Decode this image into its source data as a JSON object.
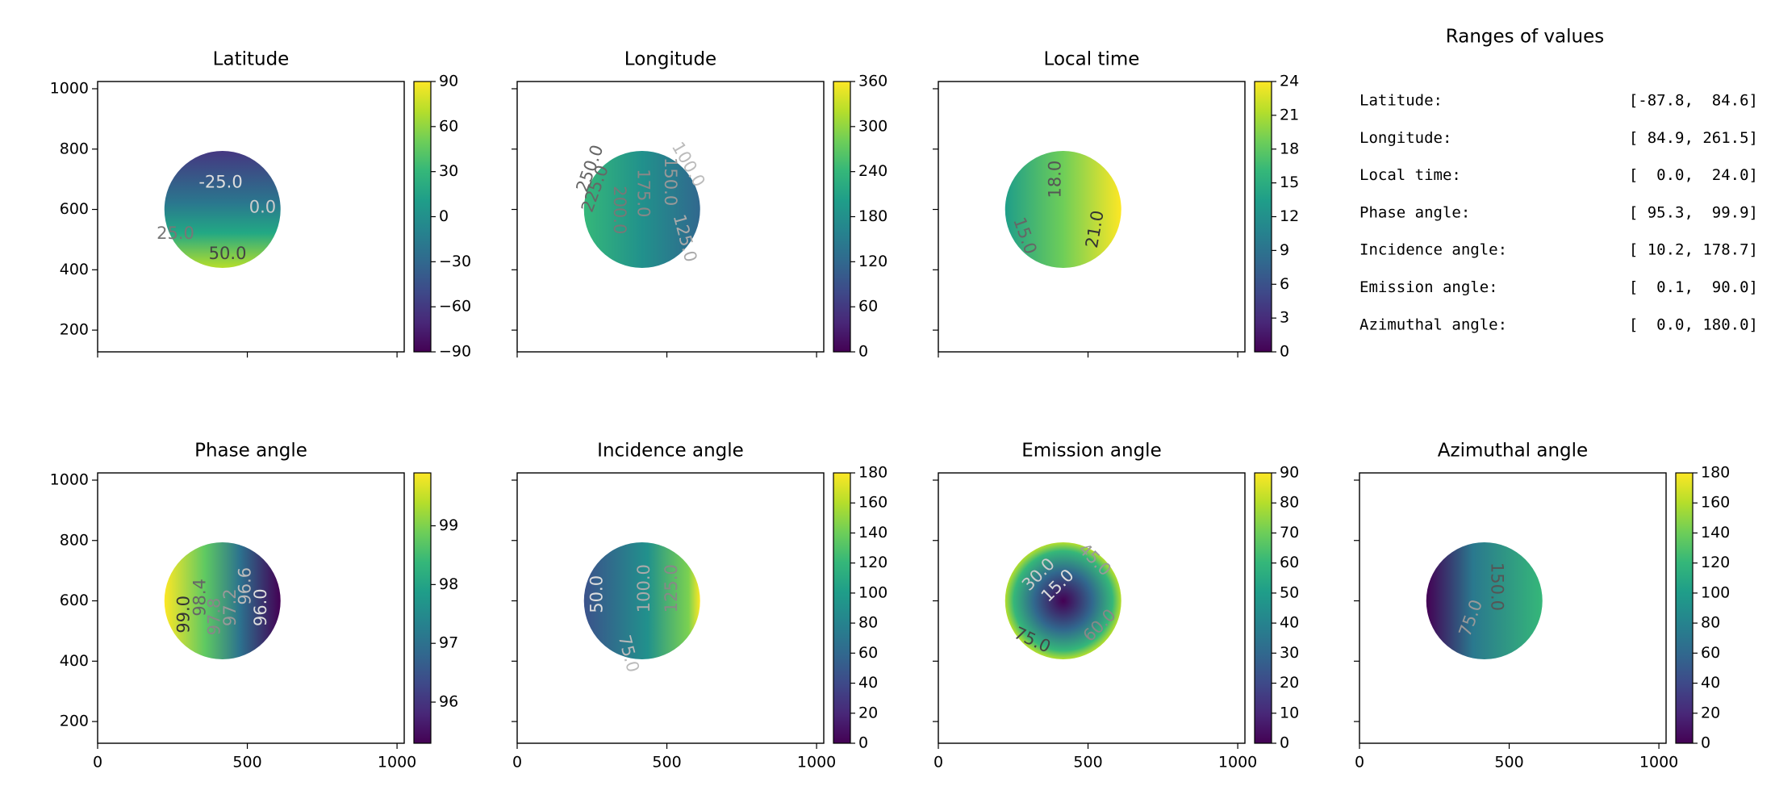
{
  "chart_data": [
    {
      "type": "image",
      "title": "Latitude",
      "xlim": [
        0,
        1024
      ],
      "ylim": [
        128,
        1024
      ],
      "xticks": [
        0,
        500,
        1000
      ],
      "yticks": [
        200,
        400,
        600,
        800,
        1000
      ],
      "show_xticklabels": false,
      "show_yticklabels": true,
      "clim": [
        -90,
        90
      ],
      "cticks": [
        {
          "value": -90,
          "label": "−90"
        },
        {
          "value": -60,
          "label": "−60"
        },
        {
          "value": -30,
          "label": "−30"
        },
        0,
        30,
        60,
        90
      ],
      "annotations": [
        "-25.0",
        "0.0",
        "25.0",
        "50.0"
      ]
    },
    {
      "type": "image",
      "title": "Longitude",
      "xlim": [
        0,
        1024
      ],
      "ylim": [
        128,
        1024
      ],
      "xticks": [
        0,
        500,
        1000
      ],
      "yticks": [
        200,
        400,
        600,
        800,
        1000
      ],
      "show_xticklabels": false,
      "show_yticklabels": false,
      "clim": [
        0,
        360
      ],
      "cticks": [
        0,
        60,
        120,
        180,
        240,
        300,
        360
      ],
      "annotations": [
        "250.0",
        "225.0",
        "200.0",
        "175.0",
        "150.0",
        "100.0",
        "125.0"
      ]
    },
    {
      "type": "image",
      "title": "Local time",
      "xlim": [
        0,
        1024
      ],
      "ylim": [
        128,
        1024
      ],
      "xticks": [
        0,
        500,
        1000
      ],
      "yticks": [
        200,
        400,
        600,
        800,
        1000
      ],
      "show_xticklabels": false,
      "show_yticklabels": false,
      "clim": [
        0,
        24
      ],
      "cticks": [
        0,
        3,
        6,
        9,
        12,
        15,
        18,
        21,
        24
      ],
      "annotations": [
        "18.0",
        "15.0",
        "21.0"
      ]
    },
    {
      "type": "image",
      "title": "Phase angle",
      "xlim": [
        0,
        1024
      ],
      "ylim": [
        128,
        1024
      ],
      "xticks": [
        0,
        500,
        1000
      ],
      "yticks": [
        200,
        400,
        600,
        800,
        1000
      ],
      "show_xticklabels": true,
      "show_yticklabels": true,
      "clim": [
        95.3,
        99.9
      ],
      "cticks": [
        96,
        97,
        98,
        99
      ],
      "annotations": [
        "99.0",
        "98.4",
        "97.8",
        "97.2",
        "96.6",
        "96.0"
      ]
    },
    {
      "type": "image",
      "title": "Incidence angle",
      "xlim": [
        0,
        1024
      ],
      "ylim": [
        128,
        1024
      ],
      "xticks": [
        0,
        500,
        1000
      ],
      "yticks": [
        200,
        400,
        600,
        800,
        1000
      ],
      "show_xticklabels": true,
      "show_yticklabels": false,
      "clim": [
        0,
        180
      ],
      "cticks": [
        0,
        20,
        40,
        60,
        80,
        100,
        120,
        140,
        160,
        180
      ],
      "annotations": [
        "50.0",
        "100.0",
        "125.0",
        "75.0"
      ]
    },
    {
      "type": "image",
      "title": "Emission angle",
      "xlim": [
        0,
        1024
      ],
      "ylim": [
        128,
        1024
      ],
      "xticks": [
        0,
        500,
        1000
      ],
      "yticks": [
        200,
        400,
        600,
        800,
        1000
      ],
      "show_xticklabels": true,
      "show_yticklabels": false,
      "clim": [
        0,
        90
      ],
      "cticks": [
        0,
        10,
        20,
        30,
        40,
        50,
        60,
        70,
        80,
        90
      ],
      "annotations": [
        "30.0",
        "15.0",
        "45.0",
        "75.0",
        "60.0"
      ]
    },
    {
      "type": "image",
      "title": "Azimuthal angle",
      "xlim": [
        0,
        1024
      ],
      "ylim": [
        128,
        1024
      ],
      "xticks": [
        0,
        500,
        1000
      ],
      "yticks": [
        200,
        400,
        600,
        800,
        1000
      ],
      "show_xticklabels": true,
      "show_yticklabels": false,
      "clim": [
        0,
        180
      ],
      "cticks": [
        0,
        20,
        40,
        60,
        80,
        100,
        120,
        140,
        160,
        180
      ],
      "annotations": [
        "75.0",
        "150.0"
      ]
    }
  ],
  "ranges": {
    "title": "Ranges of values",
    "rows": [
      {
        "label": "Latitude:",
        "value": "[-87.8,  84.6]"
      },
      {
        "label": "Longitude:",
        "value": "[ 84.9, 261.5]"
      },
      {
        "label": "Local time:",
        "value": "[  0.0,  24.0]"
      },
      {
        "label": "Phase angle:",
        "value": "[ 95.3,  99.9]"
      },
      {
        "label": "Incidence angle:",
        "value": "[ 10.2, 178.7]"
      },
      {
        "label": "Emission angle:",
        "value": "[  0.1,  90.0]"
      },
      {
        "label": "Azimuthal angle:",
        "value": "[  0.0, 180.0]"
      }
    ]
  }
}
